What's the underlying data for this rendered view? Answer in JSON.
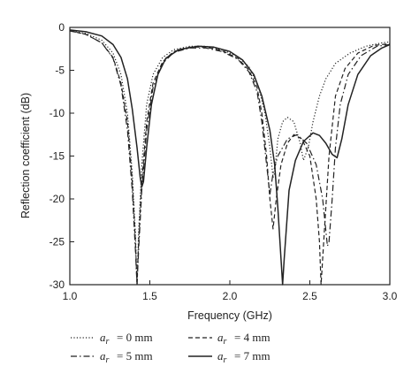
{
  "chart_data": {
    "type": "line",
    "xlabel": "Frequency (GHz)",
    "ylabel": "Reflection coefficient (dB)",
    "xlim": [
      1.0,
      3.0
    ],
    "ylim": [
      -30,
      0
    ],
    "x_ticks": [
      "1.0",
      "1.5",
      "2.0",
      "2.5",
      "3.0"
    ],
    "y_ticks": [
      "0",
      "-5",
      "-10",
      "-15",
      "-20",
      "-25",
      "-30"
    ],
    "grid": false,
    "legend_position": "bottom",
    "series": [
      {
        "name": "a_r = 0 mm",
        "style": "dotted",
        "points": [
          [
            1.0,
            -0.4
          ],
          [
            1.1,
            -0.7
          ],
          [
            1.2,
            -1.5
          ],
          [
            1.27,
            -3.0
          ],
          [
            1.32,
            -5.5
          ],
          [
            1.36,
            -10
          ],
          [
            1.39,
            -17
          ],
          [
            1.41,
            -24
          ],
          [
            1.42,
            -30
          ],
          [
            1.43,
            -24
          ],
          [
            1.45,
            -16
          ],
          [
            1.48,
            -9
          ],
          [
            1.52,
            -5.5
          ],
          [
            1.58,
            -3.5
          ],
          [
            1.65,
            -2.6
          ],
          [
            1.75,
            -2.2
          ],
          [
            1.85,
            -2.2
          ],
          [
            1.95,
            -2.6
          ],
          [
            2.05,
            -3.4
          ],
          [
            2.12,
            -4.6
          ],
          [
            2.18,
            -7
          ],
          [
            2.22,
            -10
          ],
          [
            2.25,
            -14
          ],
          [
            2.27,
            -17.5
          ],
          [
            2.28,
            -17
          ],
          [
            2.3,
            -13
          ],
          [
            2.33,
            -11
          ],
          [
            2.36,
            -10.5
          ],
          [
            2.4,
            -11
          ],
          [
            2.44,
            -13.5
          ],
          [
            2.46,
            -15.5
          ],
          [
            2.49,
            -14
          ],
          [
            2.52,
            -11
          ],
          [
            2.56,
            -8
          ],
          [
            2.6,
            -6
          ],
          [
            2.66,
            -4.2
          ],
          [
            2.75,
            -3.0
          ],
          [
            2.85,
            -2.2
          ],
          [
            2.95,
            -1.8
          ],
          [
            3.0,
            -1.7
          ]
        ]
      },
      {
        "name": "a_r = 4 mm",
        "style": "dashed",
        "points": [
          [
            1.0,
            -0.4
          ],
          [
            1.1,
            -0.8
          ],
          [
            1.2,
            -1.8
          ],
          [
            1.27,
            -3.5
          ],
          [
            1.32,
            -6.5
          ],
          [
            1.36,
            -11
          ],
          [
            1.39,
            -18
          ],
          [
            1.41,
            -25
          ],
          [
            1.42,
            -30
          ],
          [
            1.43,
            -25
          ],
          [
            1.45,
            -18
          ],
          [
            1.48,
            -11
          ],
          [
            1.52,
            -6.5
          ],
          [
            1.58,
            -4.0
          ],
          [
            1.65,
            -2.8
          ],
          [
            1.75,
            -2.3
          ],
          [
            1.85,
            -2.3
          ],
          [
            1.95,
            -2.7
          ],
          [
            2.05,
            -3.6
          ],
          [
            2.12,
            -5
          ],
          [
            2.17,
            -7
          ],
          [
            2.2,
            -10
          ],
          [
            2.23,
            -15
          ],
          [
            2.25,
            -20
          ],
          [
            2.27,
            -23.5
          ],
          [
            2.29,
            -20
          ],
          [
            2.32,
            -16
          ],
          [
            2.36,
            -13.5
          ],
          [
            2.4,
            -12.5
          ],
          [
            2.45,
            -13
          ],
          [
            2.5,
            -15
          ],
          [
            2.54,
            -20
          ],
          [
            2.56,
            -25
          ],
          [
            2.57,
            -30
          ],
          [
            2.59,
            -24
          ],
          [
            2.62,
            -15
          ],
          [
            2.66,
            -8
          ],
          [
            2.72,
            -4.8
          ],
          [
            2.8,
            -3.0
          ],
          [
            2.9,
            -2.1
          ],
          [
            3.0,
            -1.9
          ]
        ]
      },
      {
        "name": "a_r = 5 mm",
        "style": "dashdot",
        "points": [
          [
            1.0,
            -0.4
          ],
          [
            1.1,
            -0.8
          ],
          [
            1.2,
            -1.8
          ],
          [
            1.27,
            -3.6
          ],
          [
            1.32,
            -6.8
          ],
          [
            1.36,
            -12
          ],
          [
            1.39,
            -19
          ],
          [
            1.41,
            -26
          ],
          [
            1.42,
            -30
          ],
          [
            1.43,
            -26
          ],
          [
            1.45,
            -19
          ],
          [
            1.48,
            -12
          ],
          [
            1.52,
            -7
          ],
          [
            1.58,
            -4.2
          ],
          [
            1.65,
            -2.9
          ],
          [
            1.75,
            -2.4
          ],
          [
            1.85,
            -2.4
          ],
          [
            1.95,
            -2.8
          ],
          [
            2.05,
            -3.7
          ],
          [
            2.12,
            -5.2
          ],
          [
            2.17,
            -7.5
          ],
          [
            2.2,
            -11
          ],
          [
            2.23,
            -16
          ],
          [
            2.25,
            -19.5
          ],
          [
            2.27,
            -17
          ],
          [
            2.3,
            -15
          ],
          [
            2.36,
            -13
          ],
          [
            2.42,
            -12.5
          ],
          [
            2.48,
            -13.5
          ],
          [
            2.54,
            -16
          ],
          [
            2.58,
            -20
          ],
          [
            2.61,
            -25.5
          ],
          [
            2.62,
            -25
          ],
          [
            2.64,
            -20
          ],
          [
            2.66,
            -14
          ],
          [
            2.69,
            -9
          ],
          [
            2.74,
            -5.5
          ],
          [
            2.82,
            -3.3
          ],
          [
            2.92,
            -2.2
          ],
          [
            3.0,
            -2.0
          ]
        ]
      },
      {
        "name": "a_r = 7 mm",
        "style": "solid",
        "points": [
          [
            1.0,
            -0.3
          ],
          [
            1.1,
            -0.5
          ],
          [
            1.2,
            -1.0
          ],
          [
            1.27,
            -2.0
          ],
          [
            1.32,
            -3.5
          ],
          [
            1.36,
            -6
          ],
          [
            1.39,
            -9.5
          ],
          [
            1.42,
            -14
          ],
          [
            1.44,
            -17.5
          ],
          [
            1.45,
            -18.6
          ],
          [
            1.46,
            -18
          ],
          [
            1.48,
            -14
          ],
          [
            1.51,
            -9
          ],
          [
            1.55,
            -5.5
          ],
          [
            1.6,
            -3.6
          ],
          [
            1.68,
            -2.6
          ],
          [
            1.8,
            -2.2
          ],
          [
            1.9,
            -2.3
          ],
          [
            2.0,
            -2.8
          ],
          [
            2.08,
            -3.8
          ],
          [
            2.15,
            -5.5
          ],
          [
            2.2,
            -8
          ],
          [
            2.25,
            -12
          ],
          [
            2.28,
            -16
          ],
          [
            2.3,
            -21
          ],
          [
            2.32,
            -27
          ],
          [
            2.33,
            -30
          ],
          [
            2.34,
            -27
          ],
          [
            2.37,
            -19
          ],
          [
            2.41,
            -15.5
          ],
          [
            2.46,
            -13.3
          ],
          [
            2.52,
            -12.3
          ],
          [
            2.56,
            -12.6
          ],
          [
            2.6,
            -13.5
          ],
          [
            2.64,
            -14.8
          ],
          [
            2.67,
            -15.2
          ],
          [
            2.7,
            -13
          ],
          [
            2.74,
            -9
          ],
          [
            2.8,
            -5.5
          ],
          [
            2.88,
            -3.3
          ],
          [
            2.95,
            -2.4
          ],
          [
            3.0,
            -2.0
          ]
        ]
      }
    ],
    "legend": [
      {
        "series": 0,
        "label": "= 0 mm"
      },
      {
        "series": 1,
        "label": "= 4 mm"
      },
      {
        "series": 2,
        "label": "= 5 mm"
      },
      {
        "series": 3,
        "label": "= 7 mm"
      }
    ]
  }
}
